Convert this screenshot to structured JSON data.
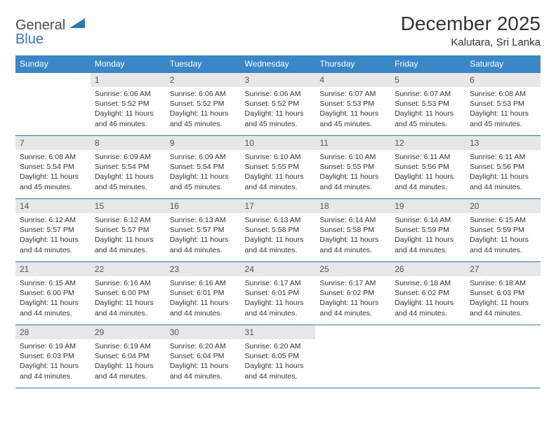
{
  "logo": {
    "word1": "General",
    "word2": "Blue"
  },
  "title": "December 2025",
  "location": "Kalutara, Sri Lanka",
  "colors": {
    "header_bg": "#3a87c8",
    "header_text": "#ffffff",
    "daynum_bg": "#e7e7e7",
    "border": "#2e77b8",
    "text": "#333333",
    "logo_gray": "#4a4a4a",
    "logo_blue": "#2e77b8"
  },
  "font": {
    "family": "Arial",
    "title_size": 28,
    "header_size": 12,
    "body_size": 10.5
  },
  "weekdays": [
    "Sunday",
    "Monday",
    "Tuesday",
    "Wednesday",
    "Thursday",
    "Friday",
    "Saturday"
  ],
  "grid": [
    [
      null,
      {
        "n": "1",
        "sr": "6:06 AM",
        "ss": "5:52 PM",
        "dl": "11 hours and 46 minutes."
      },
      {
        "n": "2",
        "sr": "6:06 AM",
        "ss": "5:52 PM",
        "dl": "11 hours and 45 minutes."
      },
      {
        "n": "3",
        "sr": "6:06 AM",
        "ss": "5:52 PM",
        "dl": "11 hours and 45 minutes."
      },
      {
        "n": "4",
        "sr": "6:07 AM",
        "ss": "5:53 PM",
        "dl": "11 hours and 45 minutes."
      },
      {
        "n": "5",
        "sr": "6:07 AM",
        "ss": "5:53 PM",
        "dl": "11 hours and 45 minutes."
      },
      {
        "n": "6",
        "sr": "6:08 AM",
        "ss": "5:53 PM",
        "dl": "11 hours and 45 minutes."
      }
    ],
    [
      {
        "n": "7",
        "sr": "6:08 AM",
        "ss": "5:54 PM",
        "dl": "11 hours and 45 minutes."
      },
      {
        "n": "8",
        "sr": "6:09 AM",
        "ss": "5:54 PM",
        "dl": "11 hours and 45 minutes."
      },
      {
        "n": "9",
        "sr": "6:09 AM",
        "ss": "5:54 PM",
        "dl": "11 hours and 45 minutes."
      },
      {
        "n": "10",
        "sr": "6:10 AM",
        "ss": "5:55 PM",
        "dl": "11 hours and 44 minutes."
      },
      {
        "n": "11",
        "sr": "6:10 AM",
        "ss": "5:55 PM",
        "dl": "11 hours and 44 minutes."
      },
      {
        "n": "12",
        "sr": "6:11 AM",
        "ss": "5:56 PM",
        "dl": "11 hours and 44 minutes."
      },
      {
        "n": "13",
        "sr": "6:11 AM",
        "ss": "5:56 PM",
        "dl": "11 hours and 44 minutes."
      }
    ],
    [
      {
        "n": "14",
        "sr": "6:12 AM",
        "ss": "5:57 PM",
        "dl": "11 hours and 44 minutes."
      },
      {
        "n": "15",
        "sr": "6:12 AM",
        "ss": "5:57 PM",
        "dl": "11 hours and 44 minutes."
      },
      {
        "n": "16",
        "sr": "6:13 AM",
        "ss": "5:57 PM",
        "dl": "11 hours and 44 minutes."
      },
      {
        "n": "17",
        "sr": "6:13 AM",
        "ss": "5:58 PM",
        "dl": "11 hours and 44 minutes."
      },
      {
        "n": "18",
        "sr": "6:14 AM",
        "ss": "5:58 PM",
        "dl": "11 hours and 44 minutes."
      },
      {
        "n": "19",
        "sr": "6:14 AM",
        "ss": "5:59 PM",
        "dl": "11 hours and 44 minutes."
      },
      {
        "n": "20",
        "sr": "6:15 AM",
        "ss": "5:59 PM",
        "dl": "11 hours and 44 minutes."
      }
    ],
    [
      {
        "n": "21",
        "sr": "6:15 AM",
        "ss": "6:00 PM",
        "dl": "11 hours and 44 minutes."
      },
      {
        "n": "22",
        "sr": "6:16 AM",
        "ss": "6:00 PM",
        "dl": "11 hours and 44 minutes."
      },
      {
        "n": "23",
        "sr": "6:16 AM",
        "ss": "6:01 PM",
        "dl": "11 hours and 44 minutes."
      },
      {
        "n": "24",
        "sr": "6:17 AM",
        "ss": "6:01 PM",
        "dl": "11 hours and 44 minutes."
      },
      {
        "n": "25",
        "sr": "6:17 AM",
        "ss": "6:02 PM",
        "dl": "11 hours and 44 minutes."
      },
      {
        "n": "26",
        "sr": "6:18 AM",
        "ss": "6:02 PM",
        "dl": "11 hours and 44 minutes."
      },
      {
        "n": "27",
        "sr": "6:18 AM",
        "ss": "6:03 PM",
        "dl": "11 hours and 44 minutes."
      }
    ],
    [
      {
        "n": "28",
        "sr": "6:19 AM",
        "ss": "6:03 PM",
        "dl": "11 hours and 44 minutes."
      },
      {
        "n": "29",
        "sr": "6:19 AM",
        "ss": "6:04 PM",
        "dl": "11 hours and 44 minutes."
      },
      {
        "n": "30",
        "sr": "6:20 AM",
        "ss": "6:04 PM",
        "dl": "11 hours and 44 minutes."
      },
      {
        "n": "31",
        "sr": "6:20 AM",
        "ss": "6:05 PM",
        "dl": "11 hours and 44 minutes."
      },
      null,
      null,
      null
    ]
  ],
  "labels": {
    "sunrise": "Sunrise:",
    "sunset": "Sunset:",
    "daylight": "Daylight:"
  }
}
